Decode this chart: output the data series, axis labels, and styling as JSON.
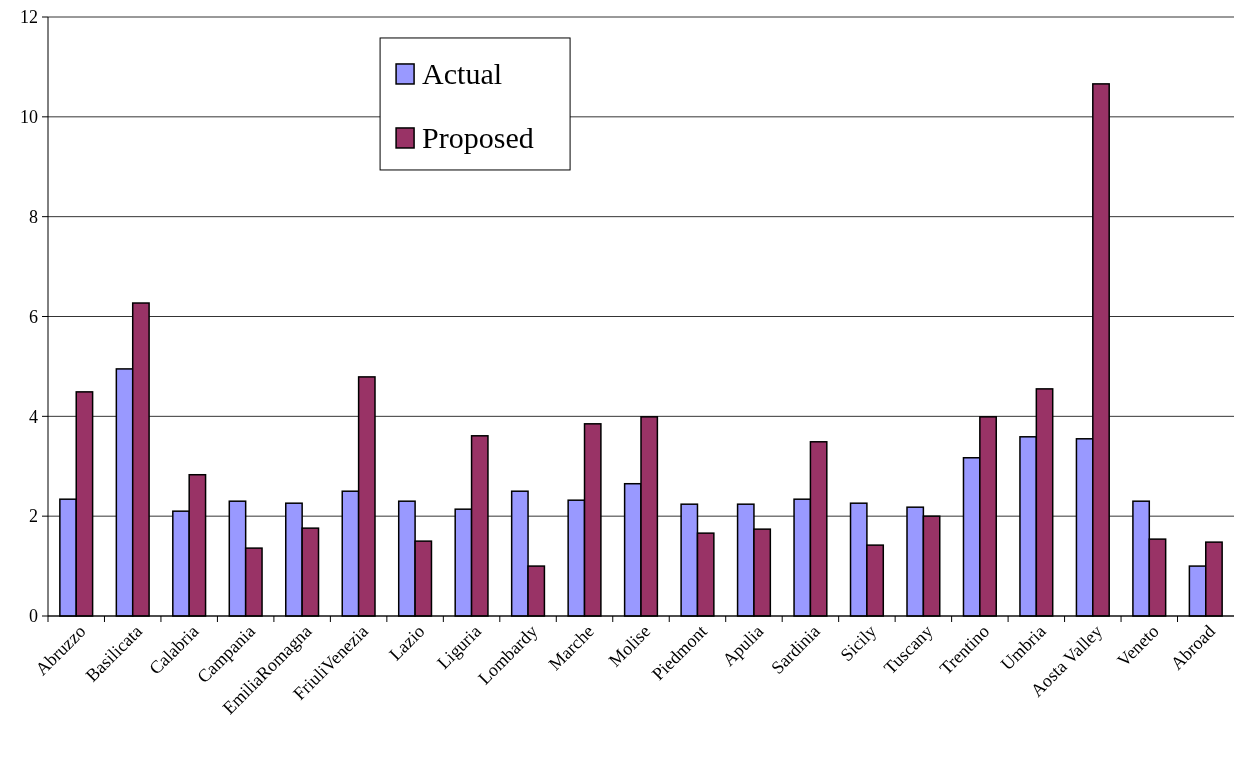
{
  "chart_data": {
    "type": "bar",
    "categories": [
      "Abruzzo",
      "Basilicata",
      "Calabria",
      "Campania",
      "EmiliaRomagna",
      "FriuliVenezia",
      "Lazio",
      "Liguria",
      "Lombardy",
      "Marche",
      "Molise",
      "Piedmont",
      "Apulia",
      "Sardinia",
      "Sicily",
      "Tuscany",
      "Trentino",
      "Umbria",
      "Aosta Valley",
      "Veneto",
      "Abroad"
    ],
    "series": [
      {
        "name": "Actual",
        "color": "#9999ff",
        "values": [
          2.34,
          4.95,
          2.1,
          2.3,
          2.26,
          2.5,
          2.3,
          2.14,
          2.5,
          2.32,
          2.65,
          2.24,
          2.24,
          2.34,
          2.26,
          2.18,
          3.17,
          3.59,
          3.55,
          2.3,
          1.0
        ]
      },
      {
        "name": "Proposed",
        "color": "#993366",
        "values": [
          4.49,
          6.27,
          2.83,
          1.36,
          1.76,
          4.79,
          1.5,
          3.61,
          1.0,
          3.85,
          3.99,
          1.66,
          1.74,
          3.49,
          1.42,
          2.0,
          3.99,
          4.55,
          10.66,
          1.54,
          1.48
        ]
      }
    ],
    "ylim": [
      0,
      12
    ],
    "yticks": [
      0,
      2,
      4,
      6,
      8,
      10,
      12
    ],
    "grid": "y",
    "legend": "top"
  }
}
